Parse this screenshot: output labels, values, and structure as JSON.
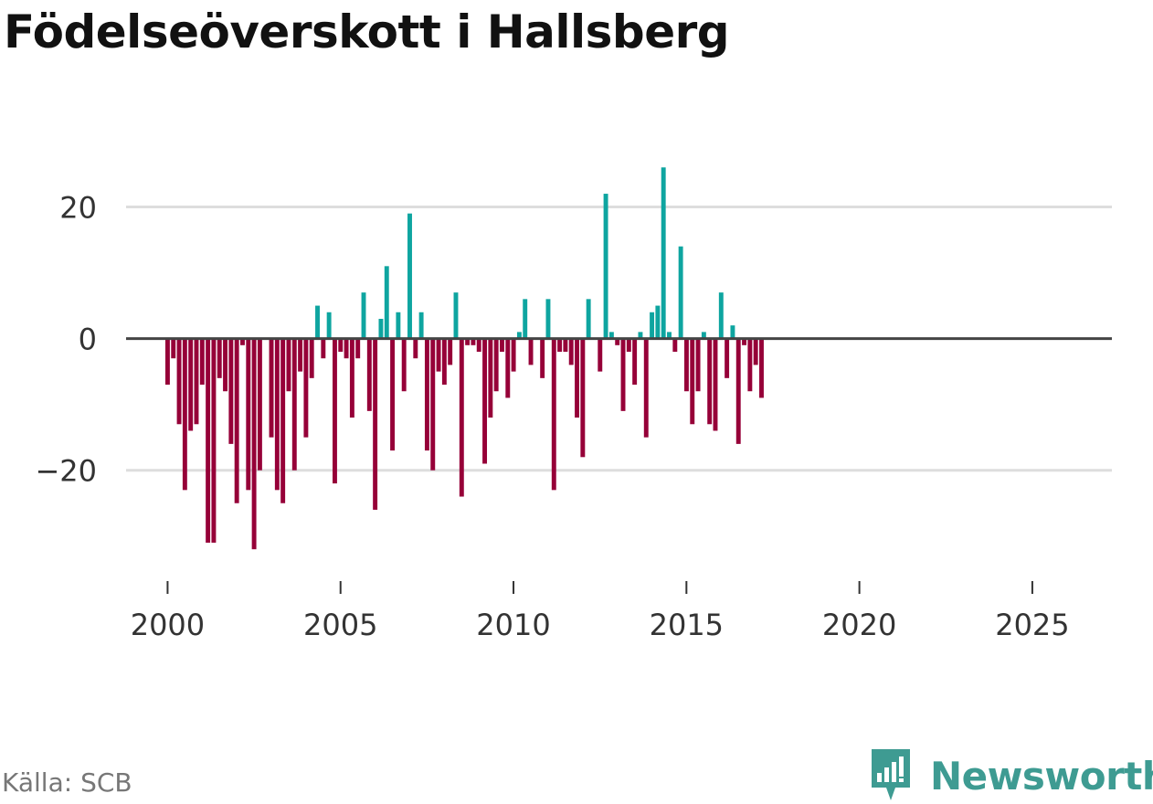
{
  "title": "Födelseöverskott i Hallsberg",
  "source": "Källa: SCB",
  "brand": "Newsworthy",
  "colors": {
    "positive": "#0ea5a0",
    "negative": "#960038",
    "grid": "#dddddd",
    "zero": "#444444",
    "axis_text": "#333333",
    "brand": "#3e9b92"
  },
  "chart_data": {
    "type": "bar",
    "title": "Födelseöverskott i Hallsberg",
    "xlabel": "",
    "ylabel": "",
    "frequency": "monthly, sampled every second month",
    "x_start": 2000.0,
    "x_step": 0.1667,
    "xlim": [
      1998.8,
      2027.3
    ],
    "ylim": [
      -36,
      32
    ],
    "yticks": [
      -20,
      0,
      20
    ],
    "ytick_labels": [
      "−20",
      "0",
      "20"
    ],
    "xticks": [
      2000,
      2005,
      2010,
      2015,
      2020,
      2025
    ],
    "xtick_labels": [
      "2000",
      "2005",
      "2010",
      "2015",
      "2020",
      "2025"
    ],
    "grid": true,
    "values": [
      -7,
      -3,
      -13,
      -23,
      -14,
      -13,
      -7,
      -31,
      -31,
      -6,
      -8,
      -16,
      -25,
      -1,
      -23,
      -32,
      -20,
      0,
      -15,
      -23,
      -25,
      -8,
      -20,
      -5,
      -15,
      -6,
      5,
      -3,
      4,
      -22,
      -2,
      -3,
      -12,
      -3,
      7,
      -11,
      -26,
      3,
      11,
      -17,
      4,
      -8,
      19,
      -3,
      4,
      -17,
      -20,
      -5,
      -7,
      -4,
      7,
      -24,
      -1,
      -1,
      -2,
      -19,
      -12,
      -8,
      -2,
      -9,
      -5,
      1,
      6,
      -4,
      0,
      -6,
      6,
      -23,
      -2,
      -2,
      -4,
      -12,
      -18,
      6,
      0,
      -5,
      22,
      1,
      -1,
      -11,
      -2,
      -7,
      1,
      -15,
      4,
      5,
      26,
      1,
      -2,
      14,
      -8,
      -13,
      -8,
      1,
      -13,
      -14,
      7,
      -6,
      2,
      -16,
      -1,
      -8,
      -4,
      -9
    ]
  }
}
